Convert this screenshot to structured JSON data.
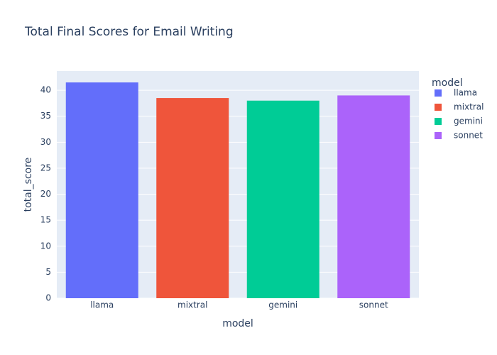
{
  "chart_data": {
    "type": "bar",
    "title": "Total Final Scores for Email Writing",
    "x_label": "model",
    "y_label": "total_score",
    "legend_title": "model",
    "categories": [
      "llama",
      "mixtral",
      "gemini",
      "sonnet"
    ],
    "series": [
      {
        "name": "llama",
        "color": "#636efa",
        "values": [
          41.5,
          null,
          null,
          null
        ]
      },
      {
        "name": "mixtral",
        "color": "#ef553b",
        "values": [
          null,
          38.5,
          null,
          null
        ]
      },
      {
        "name": "gemini",
        "color": "#00cc96",
        "values": [
          null,
          null,
          38,
          null
        ]
      },
      {
        "name": "sonnet",
        "color": "#ab63fa",
        "values": [
          null,
          null,
          null,
          39
        ]
      }
    ],
    "ylim": [
      0,
      43.7
    ],
    "yticks": [
      0,
      5,
      10,
      15,
      20,
      25,
      30,
      35,
      40
    ],
    "grid": true
  }
}
